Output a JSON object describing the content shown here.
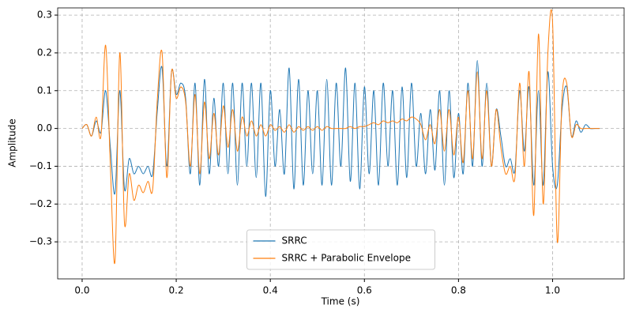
{
  "chart_data": {
    "type": "line",
    "x_label": "Time (s)",
    "y_label": "Amplitude",
    "x": [
      0,
      0.01,
      0.02,
      0.03,
      0.04,
      0.05,
      0.06,
      0.07,
      0.08,
      0.09,
      0.1,
      0.11,
      0.12,
      0.13,
      0.14,
      0.15,
      0.16,
      0.17,
      0.18,
      0.19,
      0.2,
      0.21,
      0.22,
      0.23,
      0.24,
      0.25,
      0.26,
      0.27,
      0.28,
      0.29,
      0.3,
      0.31,
      0.32,
      0.33,
      0.34,
      0.35,
      0.36,
      0.37,
      0.38,
      0.39,
      0.4,
      0.41,
      0.42,
      0.43,
      0.44,
      0.45,
      0.46,
      0.47,
      0.48,
      0.49,
      0.5,
      0.51,
      0.52,
      0.53,
      0.54,
      0.55,
      0.56,
      0.57,
      0.58,
      0.59,
      0.6,
      0.61,
      0.62,
      0.63,
      0.64,
      0.65,
      0.66,
      0.67,
      0.68,
      0.69,
      0.7,
      0.71,
      0.72,
      0.73,
      0.74,
      0.75,
      0.76,
      0.77,
      0.78,
      0.79,
      0.8,
      0.81,
      0.82,
      0.83,
      0.84,
      0.85,
      0.86,
      0.87,
      0.88,
      0.89,
      0.9,
      0.91,
      0.92,
      0.93,
      0.94,
      0.95,
      0.96,
      0.97,
      0.98,
      0.99,
      1.0,
      1.01,
      1.02,
      1.03,
      1.04,
      1.05,
      1.06,
      1.07,
      1.08,
      1.09,
      1.1
    ],
    "series": [
      {
        "name": "SRRC",
        "color": "#1f77b4",
        "values": [
          0,
          0.01,
          -0.02,
          0.02,
          -0.01,
          0.1,
          -0.05,
          -0.17,
          0.1,
          -0.16,
          -0.08,
          -0.12,
          -0.1,
          -0.12,
          -0.1,
          -0.12,
          0.05,
          0.16,
          -0.1,
          0.15,
          0.09,
          0.12,
          0.08,
          -0.12,
          0.12,
          -0.15,
          0.13,
          -0.12,
          0.08,
          -0.1,
          0.12,
          -0.12,
          0.12,
          -0.15,
          0.12,
          -0.1,
          0.12,
          -0.13,
          0.12,
          -0.18,
          0.1,
          -0.1,
          0.05,
          -0.12,
          0.16,
          -0.16,
          0.13,
          -0.15,
          0.1,
          -0.12,
          0.1,
          -0.15,
          0.13,
          -0.15,
          0.12,
          -0.1,
          0.16,
          -0.14,
          0.12,
          -0.16,
          0.11,
          -0.12,
          0.1,
          -0.15,
          0.12,
          -0.1,
          0.1,
          -0.15,
          0.11,
          -0.13,
          0.12,
          -0.1,
          0.04,
          -0.12,
          0.05,
          -0.11,
          0.1,
          -0.15,
          0.1,
          -0.13,
          0.04,
          -0.12,
          0.12,
          -0.1,
          0.18,
          -0.1,
          0.12,
          -0.1,
          0.05,
          -0.02,
          -0.1,
          -0.08,
          -0.11,
          0.1,
          -0.06,
          0.11,
          -0.15,
          0.1,
          -0.15,
          0.15,
          -0.1,
          -0.15,
          0.05,
          0.11,
          -0.02,
          0.02,
          -0.01,
          0.01,
          0,
          0,
          0
        ]
      },
      {
        "name": "SRRC + Parabolic Envelope",
        "color": "#ff7f0e",
        "values": [
          0,
          0.01,
          -0.02,
          0.03,
          -0.02,
          0.22,
          -0.1,
          -0.35,
          0.2,
          -0.25,
          -0.12,
          -0.19,
          -0.15,
          -0.17,
          -0.14,
          -0.16,
          0.08,
          0.2,
          -0.13,
          0.15,
          0.08,
          0.11,
          0.07,
          -0.1,
          0.09,
          -0.12,
          0.07,
          -0.08,
          0.04,
          -0.07,
          0.06,
          -0.05,
          0.05,
          -0.06,
          0.03,
          -0.02,
          0.02,
          -0.02,
          0.01,
          -0.02,
          0.01,
          -0.005,
          0.005,
          -0.01,
          0.01,
          -0.01,
          0.005,
          -0.005,
          0.005,
          -0.005,
          0.005,
          -0.005,
          0.005,
          0,
          0,
          0,
          0,
          0.005,
          0,
          0.005,
          0.005,
          0.01,
          0.015,
          0.01,
          0.02,
          0.015,
          0.02,
          0.015,
          0.025,
          0.02,
          0.03,
          0.025,
          0.01,
          -0.03,
          0.01,
          -0.04,
          0.05,
          -0.06,
          0.05,
          -0.07,
          0.03,
          -0.09,
          0.1,
          -0.08,
          0.15,
          -0.08,
          0.1,
          -0.1,
          0.05,
          -0.05,
          -0.12,
          -0.1,
          -0.13,
          0.12,
          -0.1,
          0.15,
          -0.23,
          0.25,
          -0.2,
          0.2,
          0.28,
          -0.3,
          0.08,
          0.12,
          -0.02,
          0.01,
          0,
          0,
          0,
          0,
          0
        ]
      }
    ],
    "xlim": [
      -0.052,
      1.152
    ],
    "ylim": [
      -0.398,
      0.319
    ],
    "xticks": [
      {
        "value": 0,
        "label": "0.0"
      },
      0.2,
      0.4,
      0.6,
      0.8,
      {
        "value": 1,
        "label": "1.0"
      }
    ],
    "yticks": [
      {
        "value": -0.3,
        "label": "−0.3"
      },
      {
        "value": -0.2,
        "label": "−0.2"
      },
      {
        "value": -0.1,
        "label": "−0.1"
      },
      {
        "value": 0,
        "label": "0.0"
      },
      0.1,
      0.2,
      0.3
    ],
    "grid": true,
    "legend": "lower center"
  }
}
